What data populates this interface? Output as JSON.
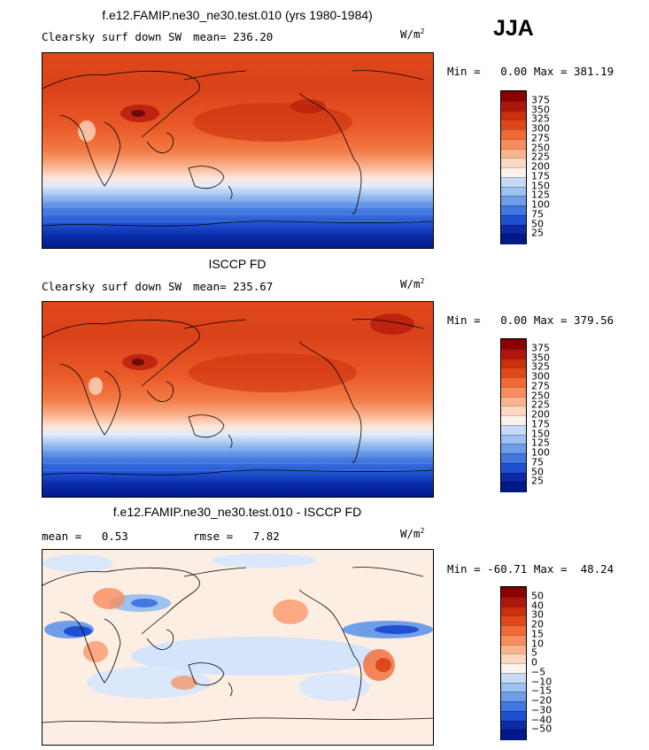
{
  "season": "JJA",
  "units_base": "W/m",
  "units_exp": "2",
  "panels": [
    {
      "id": "model",
      "title": "f.e12.FAMIP.ne30_ne30.test.010 (yrs 1980-1984)",
      "variable": "Clearsky surf down SW",
      "mean_label": "mean=",
      "mean_value": "236.20",
      "minmax": {
        "min_label": "Min =",
        "min": "0.00",
        "max_label": "Max =",
        "max": "381.19"
      },
      "colorbar": {
        "levels": [
          "375",
          "350",
          "325",
          "300",
          "275",
          "250",
          "225",
          "200",
          "175",
          "150",
          "125",
          "100",
          "75",
          "50",
          "25"
        ],
        "colors": [
          "#8b0000",
          "#b0150b",
          "#cc2f0d",
          "#e0481a",
          "#f06a34",
          "#f88c5a",
          "#fcb38c",
          "#fdd8c0",
          "#fdf3ec",
          "#c6dbf7",
          "#9ec2f0",
          "#6f9ee8",
          "#4277e0",
          "#1e50d0",
          "#0a2aa8",
          "#001a8a"
        ]
      },
      "chart_data": {
        "type": "heatmap",
        "title": "f.e12.FAMIP.ne30_ne30.test.010 (yrs 1980-1984)",
        "variable": "Clearsky surf down SW",
        "season": "JJA",
        "units": "W/m2",
        "mean": 236.2,
        "min": 0.0,
        "max": 381.19,
        "contour_levels": [
          25,
          50,
          75,
          100,
          125,
          150,
          175,
          200,
          225,
          250,
          275,
          300,
          325,
          350,
          375
        ],
        "lat_bands": [
          {
            "lat": 80,
            "value": 290
          },
          {
            "lat": 60,
            "value": 330
          },
          {
            "lat": 45,
            "value": 345
          },
          {
            "lat": 30,
            "value": 355
          },
          {
            "lat": 15,
            "value": 335
          },
          {
            "lat": 0,
            "value": 305
          },
          {
            "lat": -15,
            "value": 260
          },
          {
            "lat": -30,
            "value": 200
          },
          {
            "lat": -45,
            "value": 120
          },
          {
            "lat": -60,
            "value": 50
          },
          {
            "lat": -75,
            "value": 10
          },
          {
            "lat": -90,
            "value": 0
          }
        ]
      }
    },
    {
      "id": "obs",
      "title": "ISCCP FD",
      "variable": "Clearsky surf down SW",
      "mean_label": "mean=",
      "mean_value": "235.67",
      "minmax": {
        "min_label": "Min =",
        "min": "0.00",
        "max_label": "Max =",
        "max": "379.56"
      },
      "colorbar": {
        "levels": [
          "375",
          "350",
          "325",
          "300",
          "275",
          "250",
          "225",
          "200",
          "175",
          "150",
          "125",
          "100",
          "75",
          "50",
          "25"
        ],
        "colors": [
          "#8b0000",
          "#b0150b",
          "#cc2f0d",
          "#e0481a",
          "#f06a34",
          "#f88c5a",
          "#fcb38c",
          "#fdd8c0",
          "#fdf3ec",
          "#c6dbf7",
          "#9ec2f0",
          "#6f9ee8",
          "#4277e0",
          "#1e50d0",
          "#0a2aa8",
          "#001a8a"
        ]
      },
      "chart_data": {
        "type": "heatmap",
        "title": "ISCCP FD",
        "variable": "Clearsky surf down SW",
        "season": "JJA",
        "units": "W/m2",
        "mean": 235.67,
        "min": 0.0,
        "max": 379.56,
        "contour_levels": [
          25,
          50,
          75,
          100,
          125,
          150,
          175,
          200,
          225,
          250,
          275,
          300,
          325,
          350,
          375
        ],
        "lat_bands": [
          {
            "lat": 80,
            "value": 295
          },
          {
            "lat": 60,
            "value": 330
          },
          {
            "lat": 45,
            "value": 345
          },
          {
            "lat": 30,
            "value": 350
          },
          {
            "lat": 15,
            "value": 335
          },
          {
            "lat": 0,
            "value": 305
          },
          {
            "lat": -15,
            "value": 260
          },
          {
            "lat": -30,
            "value": 200
          },
          {
            "lat": -45,
            "value": 120
          },
          {
            "lat": -60,
            "value": 50
          },
          {
            "lat": -75,
            "value": 10
          },
          {
            "lat": -90,
            "value": 0
          }
        ]
      }
    },
    {
      "id": "diff",
      "title": "f.e12.FAMIP.ne30_ne30.test.010 - ISCCP FD",
      "mean_label": "mean =",
      "mean_value": "0.53",
      "rmse_label": "rmse =",
      "rmse_value": "7.82",
      "minmax": {
        "min_label": "Min =",
        "min": "-60.71",
        "max_label": "Max =",
        "max": "48.24"
      },
      "colorbar": {
        "levels": [
          "50",
          "40",
          "30",
          "20",
          "15",
          "10",
          "5",
          "0",
          "−5",
          "−10",
          "−15",
          "−20",
          "−30",
          "−40",
          "−50"
        ],
        "colors": [
          "#8b0000",
          "#b0150b",
          "#cc2f0d",
          "#e0481a",
          "#f06a34",
          "#f88c5a",
          "#fcb38c",
          "#fdd8c0",
          "#fdf3ec",
          "#c6dbf7",
          "#9ec2f0",
          "#6f9ee8",
          "#4277e0",
          "#1e50d0",
          "#0a2aa8",
          "#001a8a"
        ]
      },
      "chart_data": {
        "type": "heatmap",
        "title": "f.e12.FAMIP.ne30_ne30.test.010 - ISCCP FD",
        "season": "JJA",
        "units": "W/m2",
        "mean": 0.53,
        "rmse": 7.82,
        "min": -60.71,
        "max": 48.24,
        "contour_levels": [
          -50,
          -40,
          -30,
          -20,
          -15,
          -10,
          -5,
          0,
          5,
          10,
          15,
          20,
          30,
          40,
          50
        ],
        "lat_bands": [
          {
            "lat": 80,
            "value": -5
          },
          {
            "lat": 60,
            "value": 2
          },
          {
            "lat": 45,
            "value": 3
          },
          {
            "lat": 30,
            "value": 5
          },
          {
            "lat": 15,
            "value": -8
          },
          {
            "lat": 0,
            "value": 4
          },
          {
            "lat": -15,
            "value": -3
          },
          {
            "lat": -30,
            "value": 3
          },
          {
            "lat": -45,
            "value": 2
          },
          {
            "lat": -60,
            "value": 2
          },
          {
            "lat": -75,
            "value": 1
          },
          {
            "lat": -90,
            "value": 0
          }
        ]
      }
    }
  ]
}
